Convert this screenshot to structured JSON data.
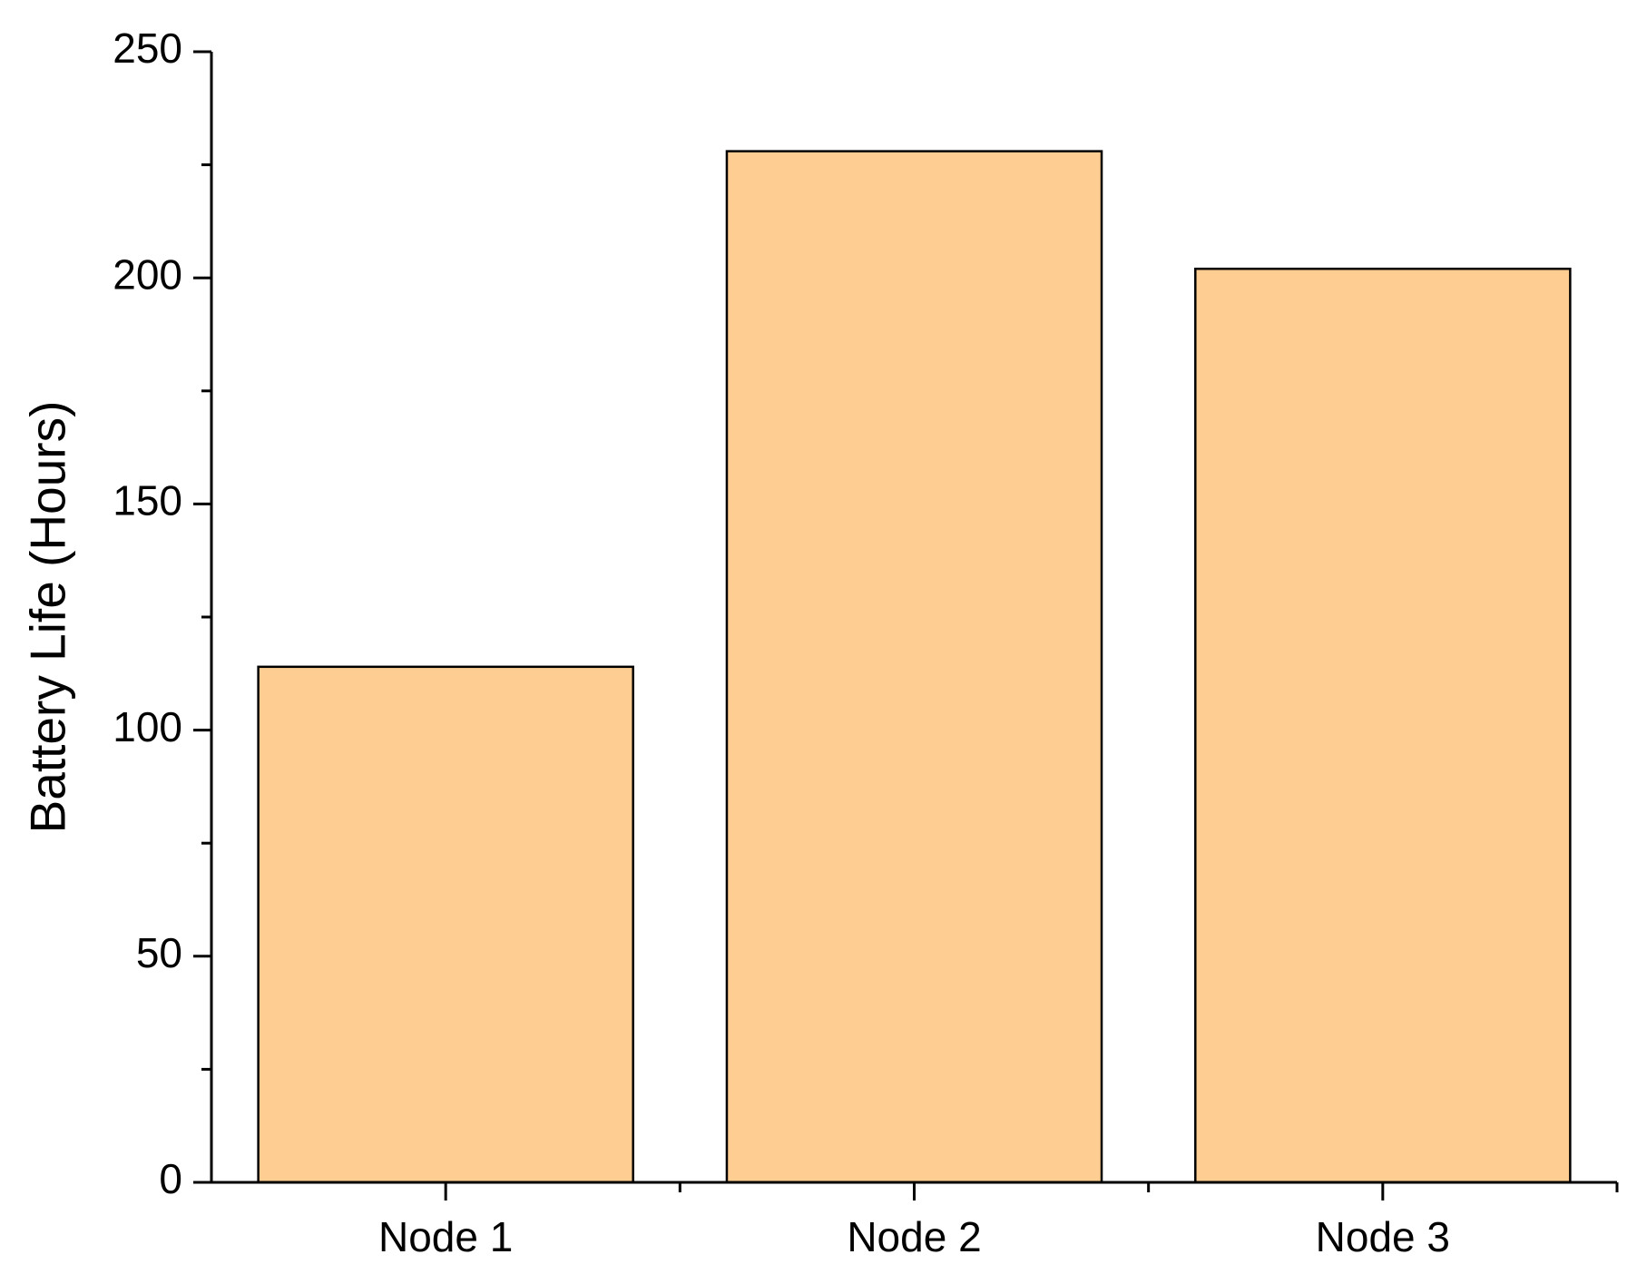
{
  "chart_data": {
    "type": "bar",
    "y_label": "Battery Life (Hours)",
    "categories": [
      "Node 1",
      "Node 2",
      "Node 3"
    ],
    "values": [
      114,
      228,
      202
    ],
    "color": "#fdcd92",
    "ylim": [
      0,
      250
    ],
    "yticks": [
      0,
      50,
      100,
      150,
      200,
      250
    ],
    "grid": false
  }
}
